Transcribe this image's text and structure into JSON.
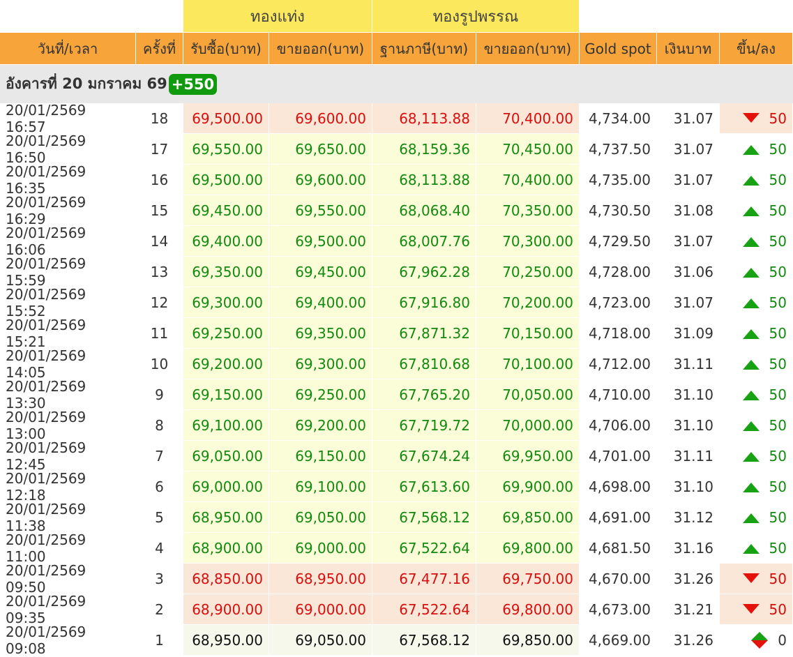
{
  "header_groups": {
    "bar": "ทองแท่ง",
    "ornament": "ทองรูปพรรณ"
  },
  "columns": [
    "วันที่/เวลา",
    "ครั้งที่",
    "รับซื้อ(บาท)",
    "ขายออก(บาท)",
    "ฐานภาษี(บาท)",
    "ขายออก(บาท)",
    "Gold spot",
    "เงินบาท",
    "ขึ้น/ลง"
  ],
  "day": {
    "label": "อังคารที่ 20 มกราคม 69",
    "total_change": "+550"
  },
  "rows": [
    {
      "time": "20/01/2569 16:57",
      "no": "18",
      "bar_buy": "69,500.00",
      "bar_sell": "69,600.00",
      "tax_base": "68,113.88",
      "orn_sell": "70,400.00",
      "spot": "4,734.00",
      "thb": "31.07",
      "dir": "down",
      "chg": "50"
    },
    {
      "time": "20/01/2569 16:50",
      "no": "17",
      "bar_buy": "69,550.00",
      "bar_sell": "69,650.00",
      "tax_base": "68,159.36",
      "orn_sell": "70,450.00",
      "spot": "4,737.50",
      "thb": "31.07",
      "dir": "up",
      "chg": "50"
    },
    {
      "time": "20/01/2569 16:35",
      "no": "16",
      "bar_buy": "69,500.00",
      "bar_sell": "69,600.00",
      "tax_base": "68,113.88",
      "orn_sell": "70,400.00",
      "spot": "4,735.00",
      "thb": "31.07",
      "dir": "up",
      "chg": "50"
    },
    {
      "time": "20/01/2569 16:29",
      "no": "15",
      "bar_buy": "69,450.00",
      "bar_sell": "69,550.00",
      "tax_base": "68,068.40",
      "orn_sell": "70,350.00",
      "spot": "4,730.50",
      "thb": "31.08",
      "dir": "up",
      "chg": "50"
    },
    {
      "time": "20/01/2569 16:06",
      "no": "14",
      "bar_buy": "69,400.00",
      "bar_sell": "69,500.00",
      "tax_base": "68,007.76",
      "orn_sell": "70,300.00",
      "spot": "4,729.50",
      "thb": "31.07",
      "dir": "up",
      "chg": "50"
    },
    {
      "time": "20/01/2569 15:59",
      "no": "13",
      "bar_buy": "69,350.00",
      "bar_sell": "69,450.00",
      "tax_base": "67,962.28",
      "orn_sell": "70,250.00",
      "spot": "4,728.00",
      "thb": "31.06",
      "dir": "up",
      "chg": "50"
    },
    {
      "time": "20/01/2569 15:52",
      "no": "12",
      "bar_buy": "69,300.00",
      "bar_sell": "69,400.00",
      "tax_base": "67,916.80",
      "orn_sell": "70,200.00",
      "spot": "4,723.00",
      "thb": "31.07",
      "dir": "up",
      "chg": "50"
    },
    {
      "time": "20/01/2569 15:21",
      "no": "11",
      "bar_buy": "69,250.00",
      "bar_sell": "69,350.00",
      "tax_base": "67,871.32",
      "orn_sell": "70,150.00",
      "spot": "4,718.00",
      "thb": "31.09",
      "dir": "up",
      "chg": "50"
    },
    {
      "time": "20/01/2569 14:05",
      "no": "10",
      "bar_buy": "69,200.00",
      "bar_sell": "69,300.00",
      "tax_base": "67,810.68",
      "orn_sell": "70,100.00",
      "spot": "4,712.00",
      "thb": "31.11",
      "dir": "up",
      "chg": "50"
    },
    {
      "time": "20/01/2569 13:30",
      "no": "9",
      "bar_buy": "69,150.00",
      "bar_sell": "69,250.00",
      "tax_base": "67,765.20",
      "orn_sell": "70,050.00",
      "spot": "4,710.00",
      "thb": "31.10",
      "dir": "up",
      "chg": "50"
    },
    {
      "time": "20/01/2569 13:00",
      "no": "8",
      "bar_buy": "69,100.00",
      "bar_sell": "69,200.00",
      "tax_base": "67,719.72",
      "orn_sell": "70,000.00",
      "spot": "4,706.00",
      "thb": "31.10",
      "dir": "up",
      "chg": "50"
    },
    {
      "time": "20/01/2569 12:45",
      "no": "7",
      "bar_buy": "69,050.00",
      "bar_sell": "69,150.00",
      "tax_base": "67,674.24",
      "orn_sell": "69,950.00",
      "spot": "4,701.00",
      "thb": "31.11",
      "dir": "up",
      "chg": "50"
    },
    {
      "time": "20/01/2569 12:18",
      "no": "6",
      "bar_buy": "69,000.00",
      "bar_sell": "69,100.00",
      "tax_base": "67,613.60",
      "orn_sell": "69,900.00",
      "spot": "4,698.00",
      "thb": "31.10",
      "dir": "up",
      "chg": "50"
    },
    {
      "time": "20/01/2569 11:38",
      "no": "5",
      "bar_buy": "68,950.00",
      "bar_sell": "69,050.00",
      "tax_base": "67,568.12",
      "orn_sell": "69,850.00",
      "spot": "4,691.00",
      "thb": "31.12",
      "dir": "up",
      "chg": "50"
    },
    {
      "time": "20/01/2569 11:00",
      "no": "4",
      "bar_buy": "68,900.00",
      "bar_sell": "69,000.00",
      "tax_base": "67,522.64",
      "orn_sell": "69,800.00",
      "spot": "4,681.50",
      "thb": "31.16",
      "dir": "up",
      "chg": "50"
    },
    {
      "time": "20/01/2569 09:50",
      "no": "3",
      "bar_buy": "68,850.00",
      "bar_sell": "68,950.00",
      "tax_base": "67,477.16",
      "orn_sell": "69,750.00",
      "spot": "4,670.00",
      "thb": "31.26",
      "dir": "down",
      "chg": "50"
    },
    {
      "time": "20/01/2569 09:35",
      "no": "2",
      "bar_buy": "68,900.00",
      "bar_sell": "69,000.00",
      "tax_base": "67,522.64",
      "orn_sell": "69,800.00",
      "spot": "4,673.00",
      "thb": "31.21",
      "dir": "down",
      "chg": "50"
    },
    {
      "time": "20/01/2569 09:08",
      "no": "1",
      "bar_buy": "68,950.00",
      "bar_sell": "69,050.00",
      "tax_base": "67,568.12",
      "orn_sell": "69,850.00",
      "spot": "4,669.00",
      "thb": "31.26",
      "dir": "flat",
      "chg": "0"
    }
  ],
  "colors": {
    "header_orange": "#f7a53b",
    "header_yellow": "#fbe85c",
    "up_green": "#12890f",
    "down_red": "#d90e0e",
    "up_bg": "#fbfcd8",
    "down_bg": "#fbe7d7",
    "badge_green": "#129a0e"
  },
  "icons": {
    "up": "triangle-up-icon",
    "down": "triangle-down-icon",
    "flat": "diamond-up-down-icon"
  }
}
